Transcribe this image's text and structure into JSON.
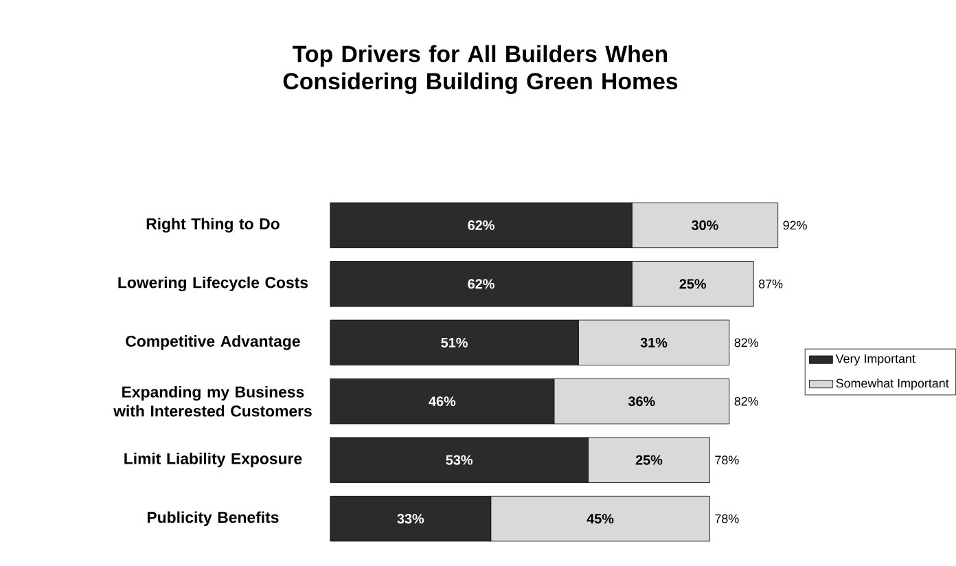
{
  "chart_data": {
    "type": "bar",
    "orientation": "horizontal",
    "stacked": true,
    "title": "Top Drivers for All Builders When Considering Building Green Homes",
    "categories": [
      "Right Thing to Do",
      "Lowering Lifecycle Costs",
      "Competitive Advantage",
      "Expanding my Business with Interested Customers",
      "Limit Liability Exposure",
      "Publicity Benefits"
    ],
    "series": [
      {
        "name": "Very Important",
        "color": "#2b2b2b",
        "values": [
          62,
          62,
          51,
          46,
          53,
          33
        ],
        "value_labels": [
          "62%",
          "62%",
          "51%",
          "46%",
          "53%",
          "33%"
        ]
      },
      {
        "name": "Somewhat Important",
        "color": "#d9d9d9",
        "values": [
          30,
          25,
          31,
          36,
          25,
          45
        ],
        "value_labels": [
          "30%",
          "25%",
          "31%",
          "36%",
          "25%",
          "45%"
        ]
      }
    ],
    "totals": [
      "92%",
      "87%",
      "82%",
      "82%",
      "78%",
      "78%"
    ],
    "legend": "right"
  }
}
